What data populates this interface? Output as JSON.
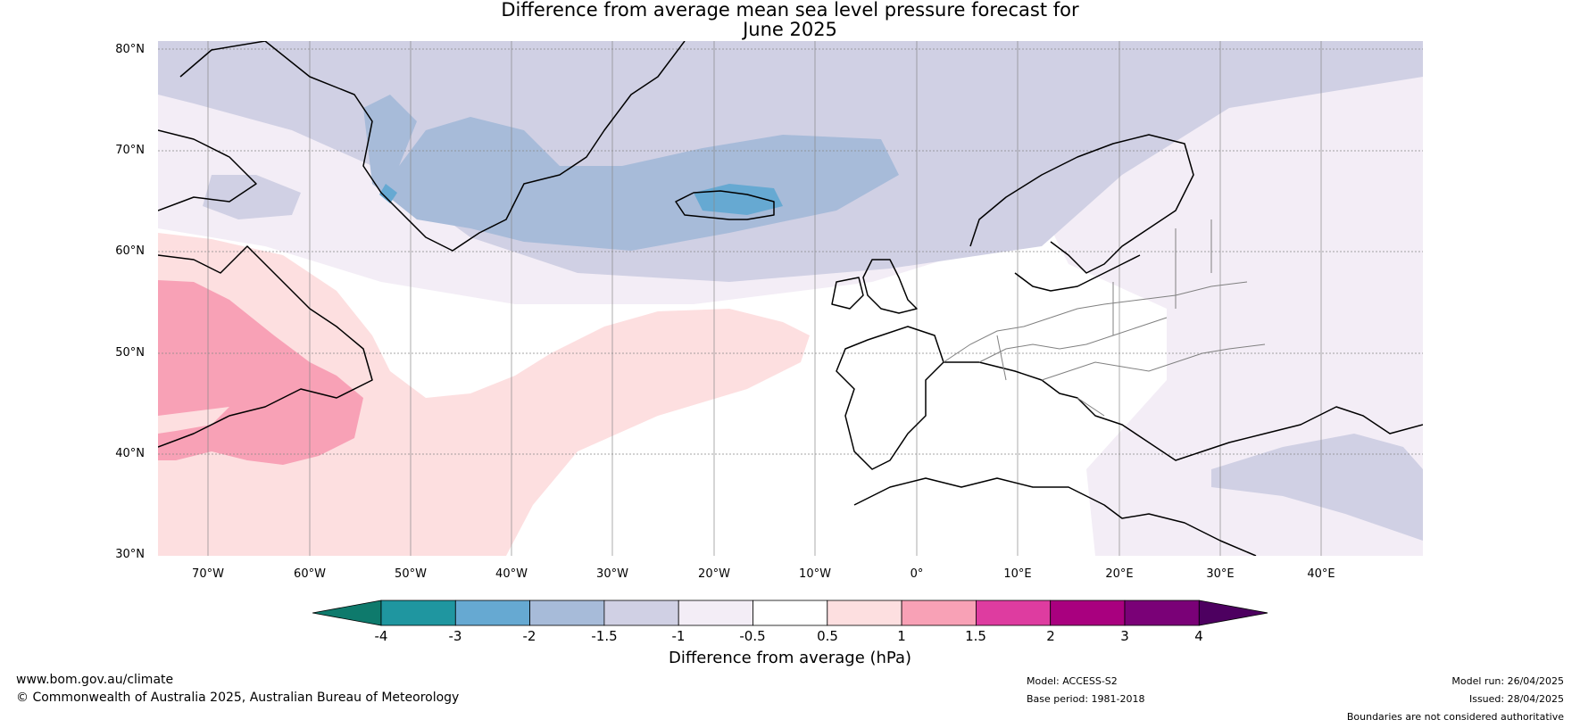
{
  "title": {
    "line1": "Difference from average mean sea level pressure forecast for",
    "line2": "June 2025"
  },
  "map": {
    "lat_labels": [
      "80°N",
      "70°N",
      "60°N",
      "50°N",
      "40°N",
      "30°N"
    ],
    "lon_labels": [
      "70°W",
      "60°W",
      "50°W",
      "40°W",
      "30°W",
      "20°W",
      "10°W",
      "0°",
      "10°E",
      "20°E",
      "30°E",
      "40°E"
    ],
    "colors": {
      "land_outline": "#000000",
      "border": "#808080",
      "gridline": "#888888"
    }
  },
  "colorbar": {
    "bins": [
      {
        "color": "#0e7a6c"
      },
      {
        "color": "#1f96a0"
      },
      {
        "color": "#66a9d2"
      },
      {
        "color": "#a7bbd9"
      },
      {
        "color": "#d0d0e4"
      },
      {
        "color": "#f3edf6"
      },
      {
        "color": "#ffffff"
      },
      {
        "color": "#fddfe0"
      },
      {
        "color": "#f8a1b6"
      },
      {
        "color": "#de3ca0"
      },
      {
        "color": "#a9007f"
      },
      {
        "color": "#7a0177"
      },
      {
        "color": "#4d0060"
      }
    ],
    "tick_labels": [
      "-4",
      "-3",
      "-2",
      "-1.5",
      "-1",
      "-0.5",
      "0.5",
      "1",
      "1.5",
      "2",
      "3",
      "4"
    ],
    "label": "Difference from average (hPa)"
  },
  "footer": {
    "website": "www.bom.gov.au/climate",
    "copyright": "© Commonwealth of Australia 2025, Australian Bureau of Meteorology",
    "model": "Model: ACCESS-S2",
    "base_period": "Base period: 1981-2018",
    "model_run": "Model run: 26/04/2025",
    "issued": "Issued: 28/04/2025",
    "disclaimer": "Boundaries are not considered authoritative"
  }
}
